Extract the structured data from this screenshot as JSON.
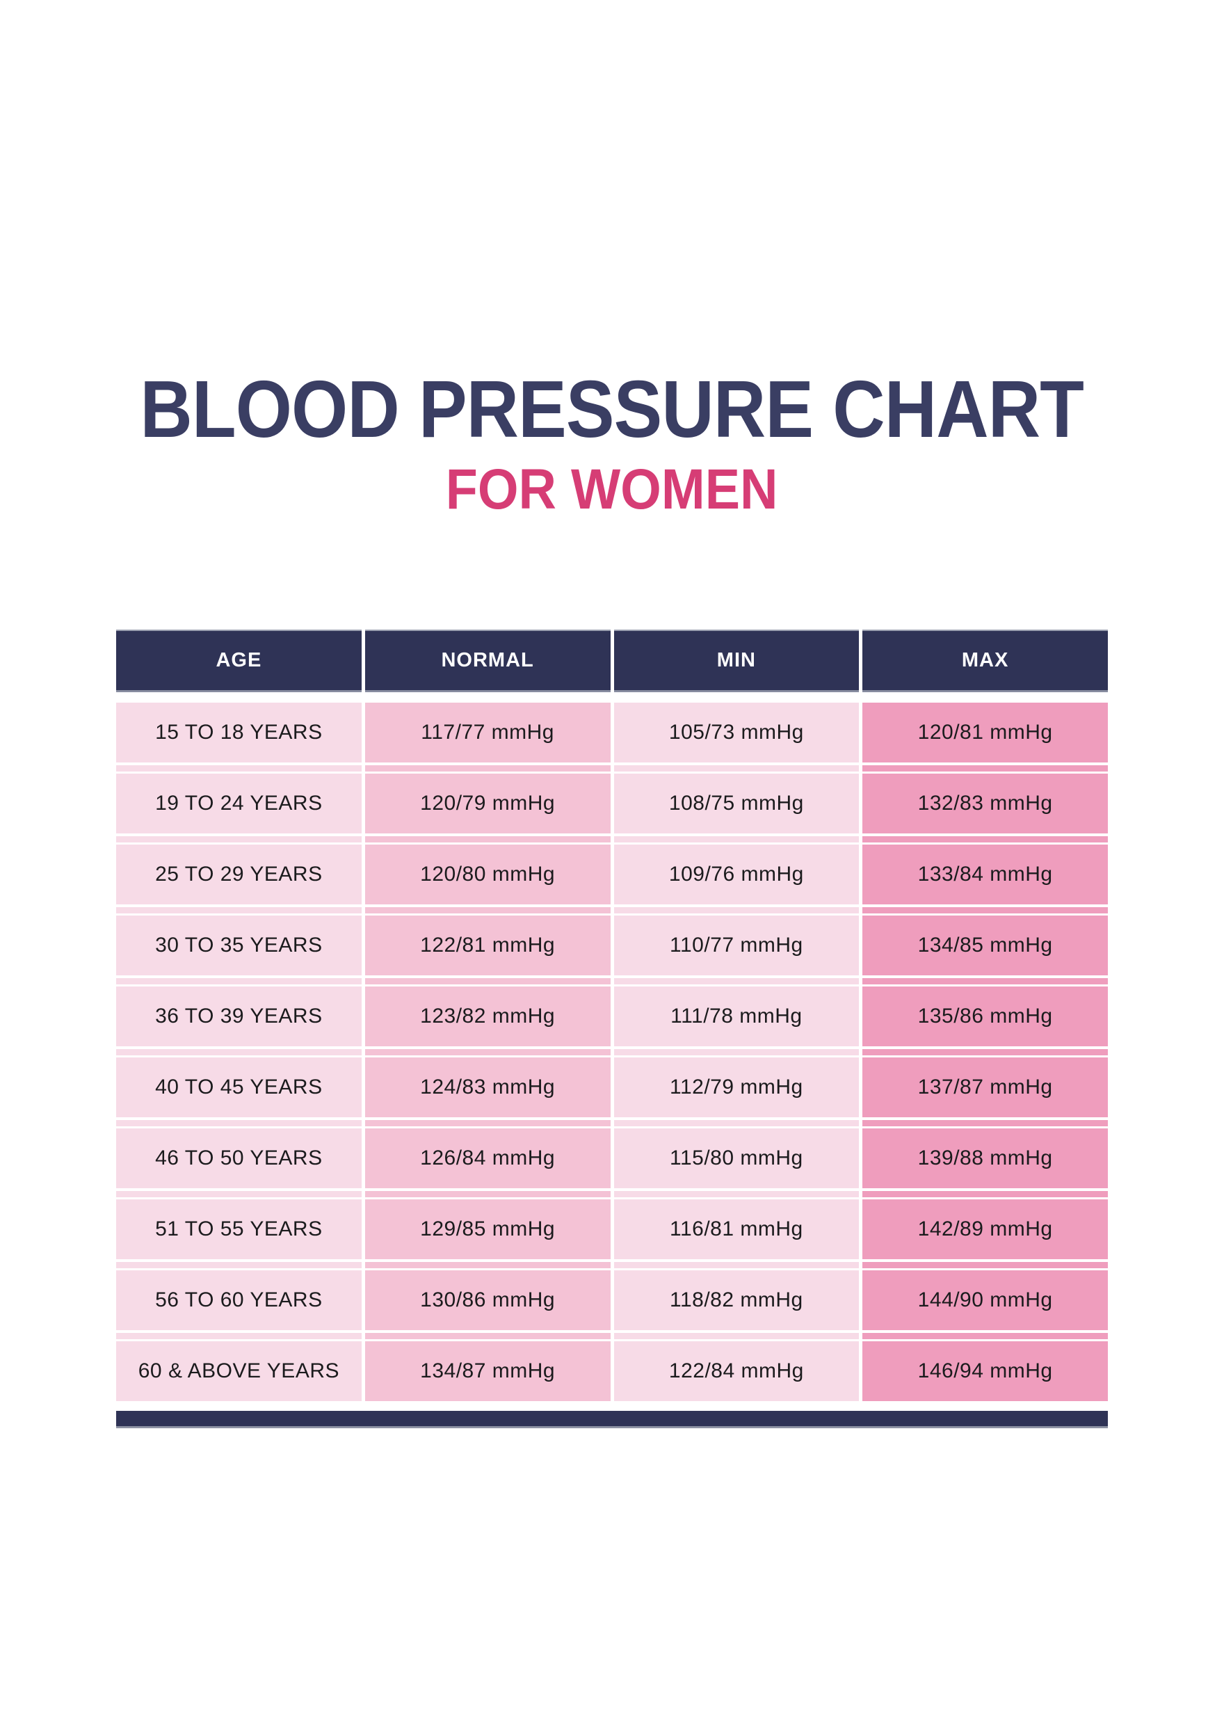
{
  "page": {
    "title": "BLOOD PRESSURE CHART",
    "subtitle": "FOR WOMEN"
  },
  "colors": {
    "header_navy": "#2F3356",
    "title_navy": "#3A3E63",
    "accent_pink": "#D63D75",
    "column_light_pink": "#F7DBE7",
    "column_medium_pink": "#F4C2D5",
    "column_dark_pink": "#EF9DBD",
    "header_text": "#FFFFFF",
    "cell_text": "#1B1B1D"
  },
  "chart_data": {
    "type": "table",
    "title": "BLOOD PRESSURE CHART",
    "subtitle": "FOR WOMEN",
    "columns": [
      "AGE",
      "NORMAL",
      "MIN",
      "MAX"
    ],
    "rows": [
      [
        "15 TO 18 YEARS",
        "117/77 mmHg",
        "105/73 mmHg",
        "120/81 mmHg"
      ],
      [
        "19 TO 24 YEARS",
        "120/79 mmHg",
        "108/75 mmHg",
        "132/83 mmHg"
      ],
      [
        "25 TO 29 YEARS",
        "120/80 mmHg",
        "109/76 mmHg",
        "133/84 mmHg"
      ],
      [
        "30 TO 35 YEARS",
        "122/81 mmHg",
        "110/77 mmHg",
        "134/85 mmHg"
      ],
      [
        "36 TO 39 YEARS",
        "123/82 mmHg",
        "111/78 mmHg",
        "135/86 mmHg"
      ],
      [
        "40 TO 45 YEARS",
        "124/83 mmHg",
        "112/79 mmHg",
        "137/87 mmHg"
      ],
      [
        "46 TO 50 YEARS",
        "126/84 mmHg",
        "115/80 mmHg",
        "139/88 mmHg"
      ],
      [
        "51 TO 55 YEARS",
        "129/85 mmHg",
        "116/81 mmHg",
        "142/89 mmHg"
      ],
      [
        "56 TO 60 YEARS",
        "130/86 mmHg",
        "118/82 mmHg",
        "144/90 mmHg"
      ],
      [
        "60 & ABOVE YEARS",
        "134/87 mmHg",
        "122/84 mmHg",
        "146/94 mmHg"
      ]
    ]
  }
}
